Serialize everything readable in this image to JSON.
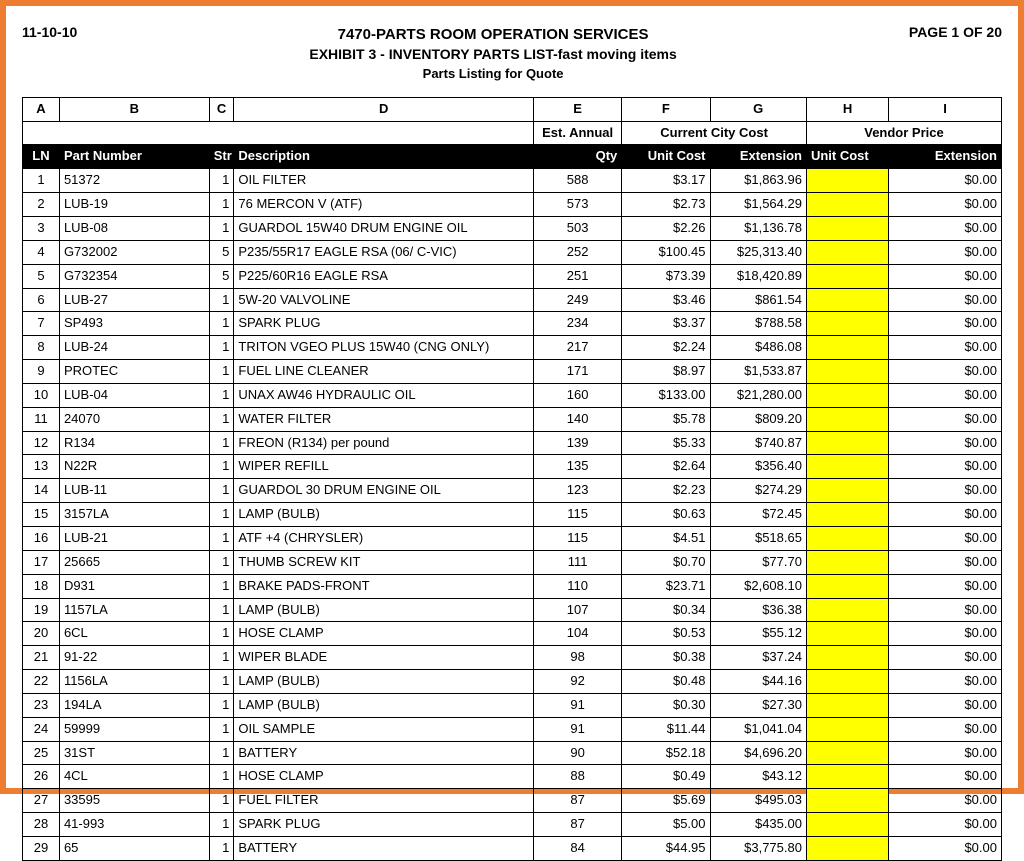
{
  "header": {
    "date": "11-10-10",
    "title1": "7470-PARTS ROOM OPERATION SERVICES",
    "title2": "EXHIBIT 3 - INVENTORY PARTS LIST-fast moving items",
    "title3": "Parts Listing for Quote",
    "page": "PAGE 1 OF 20"
  },
  "columns": {
    "letters": [
      "A",
      "B",
      "C",
      "D",
      "E",
      "F",
      "G",
      "H",
      "I"
    ],
    "group_est": "Est. Annual",
    "group_city": "Current City Cost",
    "group_vendor": "Vendor Price",
    "ln": "LN",
    "part": "Part Number",
    "str": "Str",
    "desc": "Description",
    "qty": "Qty",
    "unit_cost": "Unit Cost",
    "extension": "Extension",
    "v_unit_cost": "Unit Cost",
    "v_extension": "Extension"
  },
  "styling": {
    "highlight_color": "#ffff00",
    "border_color": "#ed7d31",
    "header_bg": "#000000",
    "header_fg": "#ffffff",
    "zero_ext": "$0.00"
  },
  "rows": [
    {
      "ln": "1",
      "part": "51372",
      "str": "1",
      "desc": "OIL FILTER",
      "qty": "588",
      "uc": "$3.17",
      "ext": "$1,863.96"
    },
    {
      "ln": "2",
      "part": "LUB-19",
      "str": "1",
      "desc": "76 MERCON V (ATF)",
      "qty": "573",
      "uc": "$2.73",
      "ext": "$1,564.29"
    },
    {
      "ln": "3",
      "part": "LUB-08",
      "str": "1",
      "desc": "GUARDOL 15W40 DRUM ENGINE OIL",
      "qty": "503",
      "uc": "$2.26",
      "ext": "$1,136.78"
    },
    {
      "ln": "4",
      "part": "G732002",
      "str": "5",
      "desc": "P235/55R17 EAGLE RSA (06/ C-VIC)",
      "qty": "252",
      "uc": "$100.45",
      "ext": "$25,313.40"
    },
    {
      "ln": "5",
      "part": "G732354",
      "str": "5",
      "desc": "P225/60R16 EAGLE RSA",
      "qty": "251",
      "uc": "$73.39",
      "ext": "$18,420.89"
    },
    {
      "ln": "6",
      "part": "LUB-27",
      "str": "1",
      "desc": "5W-20 VALVOLINE",
      "qty": "249",
      "uc": "$3.46",
      "ext": "$861.54"
    },
    {
      "ln": "7",
      "part": "SP493",
      "str": "1",
      "desc": "SPARK PLUG",
      "qty": "234",
      "uc": "$3.37",
      "ext": "$788.58"
    },
    {
      "ln": "8",
      "part": "LUB-24",
      "str": "1",
      "desc": "TRITON VGEO PLUS 15W40 (CNG ONLY)",
      "qty": "217",
      "uc": "$2.24",
      "ext": "$486.08"
    },
    {
      "ln": "9",
      "part": "PROTEC",
      "str": "1",
      "desc": "FUEL LINE CLEANER",
      "qty": "171",
      "uc": "$8.97",
      "ext": "$1,533.87"
    },
    {
      "ln": "10",
      "part": "LUB-04",
      "str": "1",
      "desc": "UNAX AW46 HYDRAULIC OIL",
      "qty": "160",
      "uc": "$133.00",
      "ext": "$21,280.00"
    },
    {
      "ln": "11",
      "part": "24070",
      "str": "1",
      "desc": "WATER FILTER",
      "qty": "140",
      "uc": "$5.78",
      "ext": "$809.20"
    },
    {
      "ln": "12",
      "part": "R134",
      "str": "1",
      "desc": "FREON (R134) per pound",
      "qty": "139",
      "uc": "$5.33",
      "ext": "$740.87"
    },
    {
      "ln": "13",
      "part": "N22R",
      "str": "1",
      "desc": "WIPER REFILL",
      "qty": "135",
      "uc": "$2.64",
      "ext": "$356.40"
    },
    {
      "ln": "14",
      "part": "LUB-11",
      "str": "1",
      "desc": "GUARDOL 30 DRUM ENGINE OIL",
      "qty": "123",
      "uc": "$2.23",
      "ext": "$274.29"
    },
    {
      "ln": "15",
      "part": "3157LA",
      "str": "1",
      "desc": "LAMP (BULB)",
      "qty": "115",
      "uc": "$0.63",
      "ext": "$72.45"
    },
    {
      "ln": "16",
      "part": "LUB-21",
      "str": "1",
      "desc": "ATF +4 (CHRYSLER)",
      "qty": "115",
      "uc": "$4.51",
      "ext": "$518.65"
    },
    {
      "ln": "17",
      "part": "25665",
      "str": "1",
      "desc": "THUMB SCREW KIT",
      "qty": "111",
      "uc": "$0.70",
      "ext": "$77.70"
    },
    {
      "ln": "18",
      "part": "D931",
      "str": "1",
      "desc": "BRAKE PADS-FRONT",
      "qty": "110",
      "uc": "$23.71",
      "ext": "$2,608.10"
    },
    {
      "ln": "19",
      "part": "1157LA",
      "str": "1",
      "desc": "LAMP (BULB)",
      "qty": "107",
      "uc": "$0.34",
      "ext": "$36.38"
    },
    {
      "ln": "20",
      "part": "6CL",
      "str": "1",
      "desc": "HOSE CLAMP",
      "qty": "104",
      "uc": "$0.53",
      "ext": "$55.12"
    },
    {
      "ln": "21",
      "part": "91-22",
      "str": "1",
      "desc": "WIPER BLADE",
      "qty": "98",
      "uc": "$0.38",
      "ext": "$37.24"
    },
    {
      "ln": "22",
      "part": "1156LA",
      "str": "1",
      "desc": "LAMP (BULB)",
      "qty": "92",
      "uc": "$0.48",
      "ext": "$44.16"
    },
    {
      "ln": "23",
      "part": "194LA",
      "str": "1",
      "desc": "LAMP (BULB)",
      "qty": "91",
      "uc": "$0.30",
      "ext": "$27.30"
    },
    {
      "ln": "24",
      "part": "59999",
      "str": "1",
      "desc": "OIL SAMPLE",
      "qty": "91",
      "uc": "$11.44",
      "ext": "$1,041.04"
    },
    {
      "ln": "25",
      "part": "31ST",
      "str": "1",
      "desc": "BATTERY",
      "qty": "90",
      "uc": "$52.18",
      "ext": "$4,696.20"
    },
    {
      "ln": "26",
      "part": "4CL",
      "str": "1",
      "desc": "HOSE CLAMP",
      "qty": "88",
      "uc": "$0.49",
      "ext": "$43.12"
    },
    {
      "ln": "27",
      "part": "33595",
      "str": "1",
      "desc": "FUEL FILTER",
      "qty": "87",
      "uc": "$5.69",
      "ext": "$495.03"
    },
    {
      "ln": "28",
      "part": "41-993",
      "str": "1",
      "desc": "SPARK PLUG",
      "qty": "87",
      "uc": "$5.00",
      "ext": "$435.00"
    },
    {
      "ln": "29",
      "part": "65",
      "str": "1",
      "desc": "BATTERY",
      "qty": "84",
      "uc": "$44.95",
      "ext": "$3,775.80"
    }
  ]
}
